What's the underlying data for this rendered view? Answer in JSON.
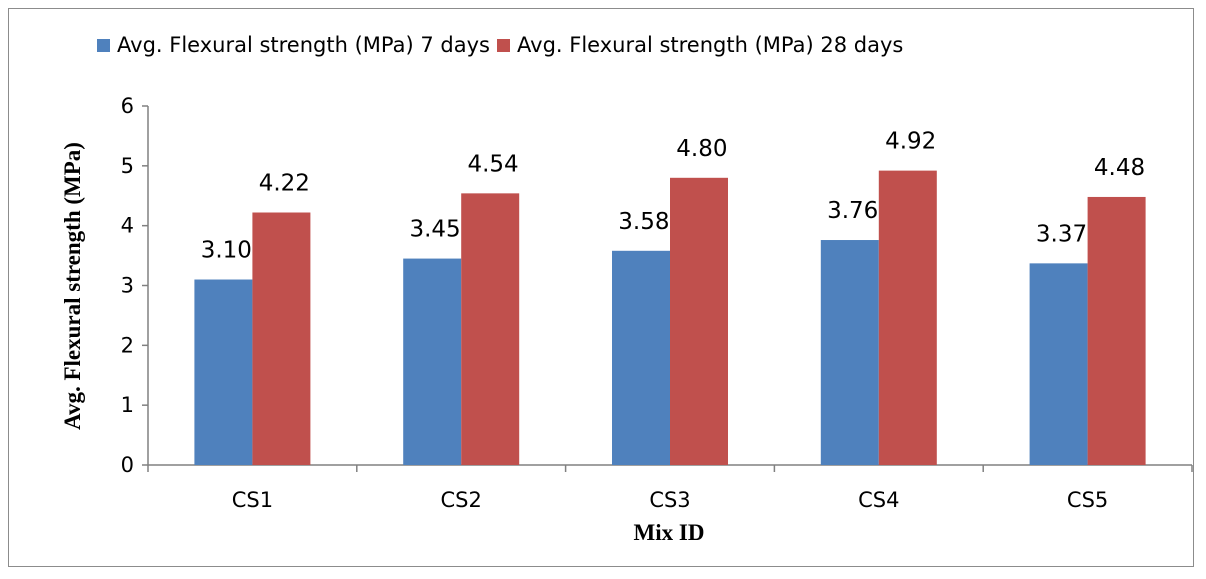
{
  "chart_data": {
    "type": "bar",
    "title": "",
    "xlabel": "Mix ID",
    "ylabel": "Avg. Flexural strength (MPa)",
    "categories": [
      "CS1",
      "CS2",
      "CS3",
      "CS4",
      "CS5"
    ],
    "ylim": [
      0,
      6
    ],
    "yticks": [
      "0",
      "1",
      "2",
      "3",
      "4",
      "5",
      "6"
    ],
    "grid": false,
    "legend_position": "top",
    "series": [
      {
        "name": "Avg. Flexural strength (MPa) 7 days",
        "color": "#4f81bd",
        "values": [
          3.1,
          3.45,
          3.58,
          3.76,
          3.37
        ],
        "labels": [
          "3.10",
          "3.45",
          "3.58",
          "3.76",
          "3.37"
        ]
      },
      {
        "name": "Avg. Flexural strength (MPa) 28 days",
        "color": "#c0504d",
        "values": [
          4.22,
          4.54,
          4.8,
          4.92,
          4.48
        ],
        "labels": [
          "4.22",
          "4.54",
          "4.80",
          "4.92",
          "4.48"
        ]
      }
    ]
  }
}
